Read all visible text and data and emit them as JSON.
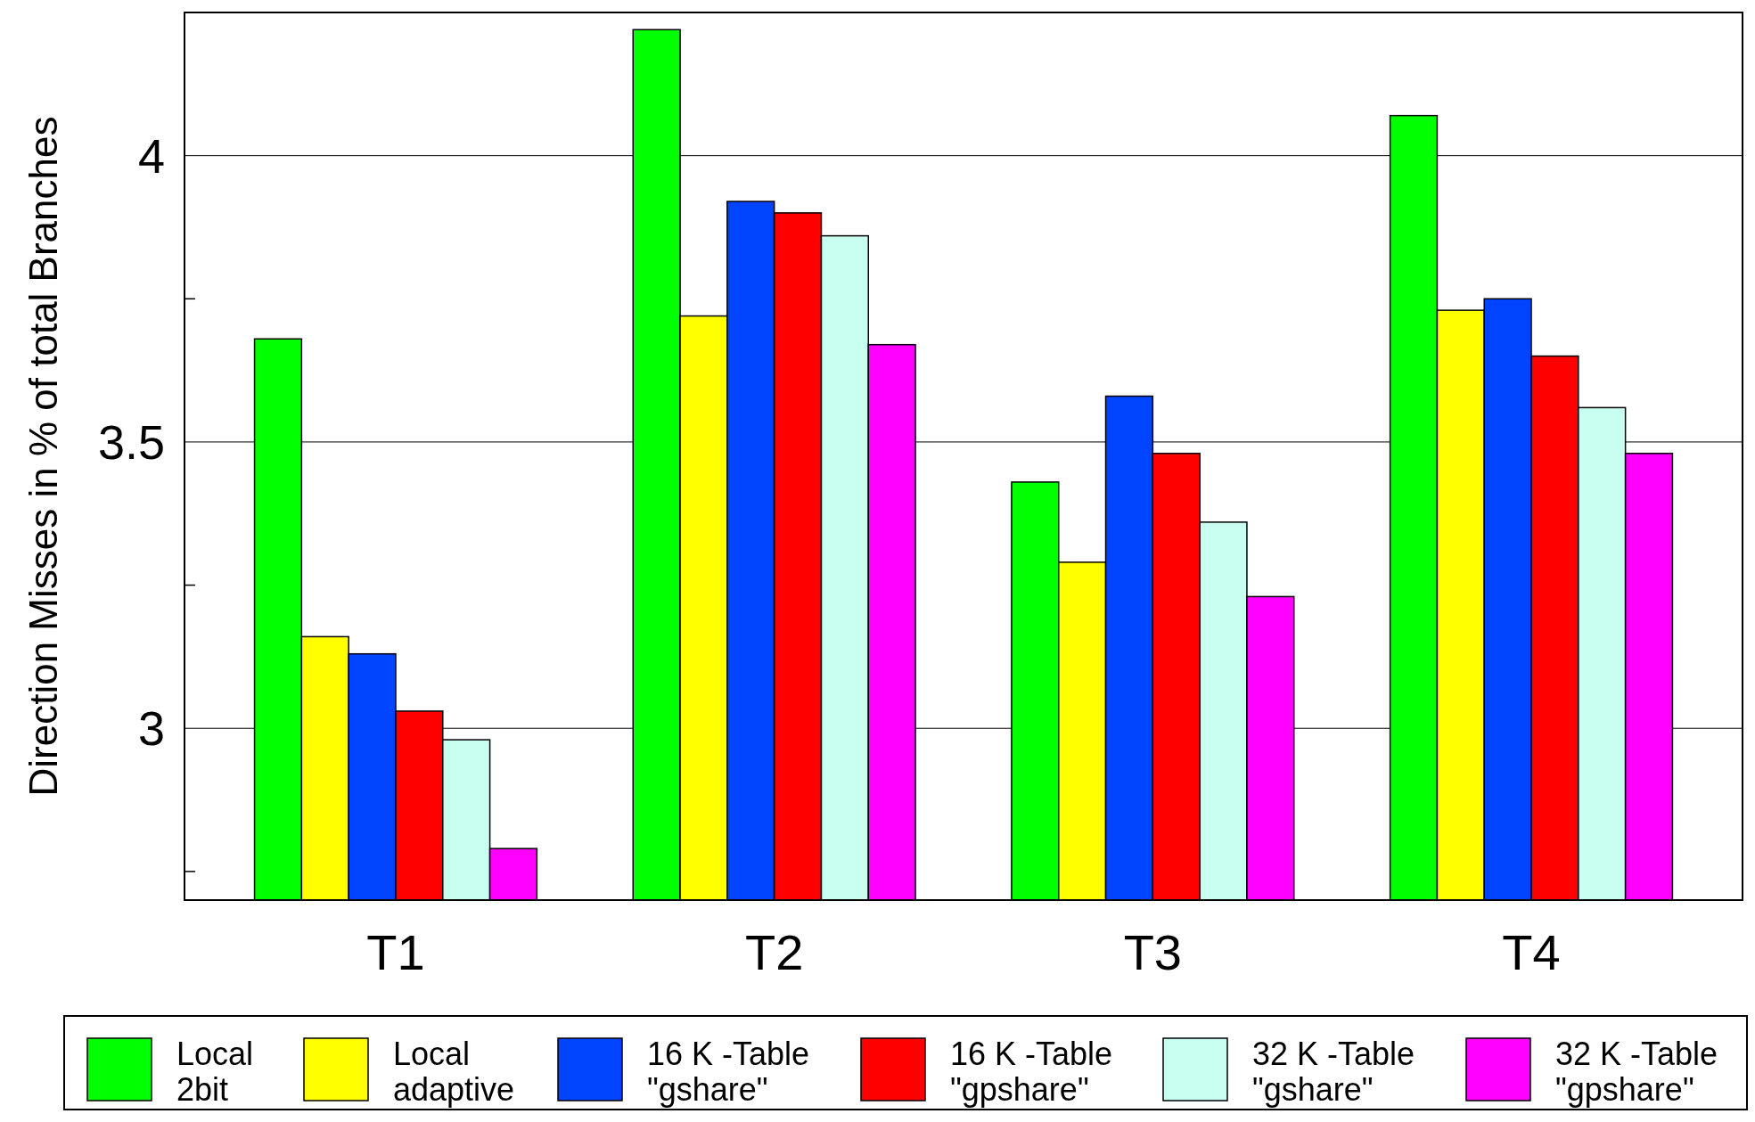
{
  "chart_data": {
    "type": "bar",
    "ylabel": "Direction Misses in % of total Branches",
    "categories": [
      "T1",
      "T2",
      "T3",
      "T4"
    ],
    "series": [
      {
        "name": "Local\n2bit",
        "color": "#00ff00",
        "values": [
          3.68,
          4.22,
          3.43,
          4.07
        ]
      },
      {
        "name": "Local\nadaptive",
        "color": "#ffff00",
        "values": [
          3.16,
          3.72,
          3.29,
          3.73
        ]
      },
      {
        "name": "16 K -Table\n\"gshare\"",
        "color": "#0044ff",
        "values": [
          3.13,
          3.92,
          3.58,
          3.75
        ]
      },
      {
        "name": "16 K -Table\n\"gpshare\"",
        "color": "#ff0000",
        "values": [
          3.03,
          3.9,
          3.48,
          3.65
        ]
      },
      {
        "name": "32 K -Table\n\"gshare\"",
        "color": "#c8fff0",
        "values": [
          2.98,
          3.86,
          3.36,
          3.56
        ]
      },
      {
        "name": "32 K -Table\n\"gpshare\"",
        "color": "#ff00ff",
        "values": [
          2.79,
          3.67,
          3.23,
          3.48
        ]
      }
    ],
    "ylim": [
      2.7,
      4.25
    ],
    "yticks": [
      {
        "value": 2.75,
        "label": null
      },
      3,
      {
        "value": 3.25,
        "label": null
      },
      3.5,
      {
        "value": 3.75,
        "label": null
      },
      4
    ],
    "grid": "y",
    "legend": "bottom"
  }
}
